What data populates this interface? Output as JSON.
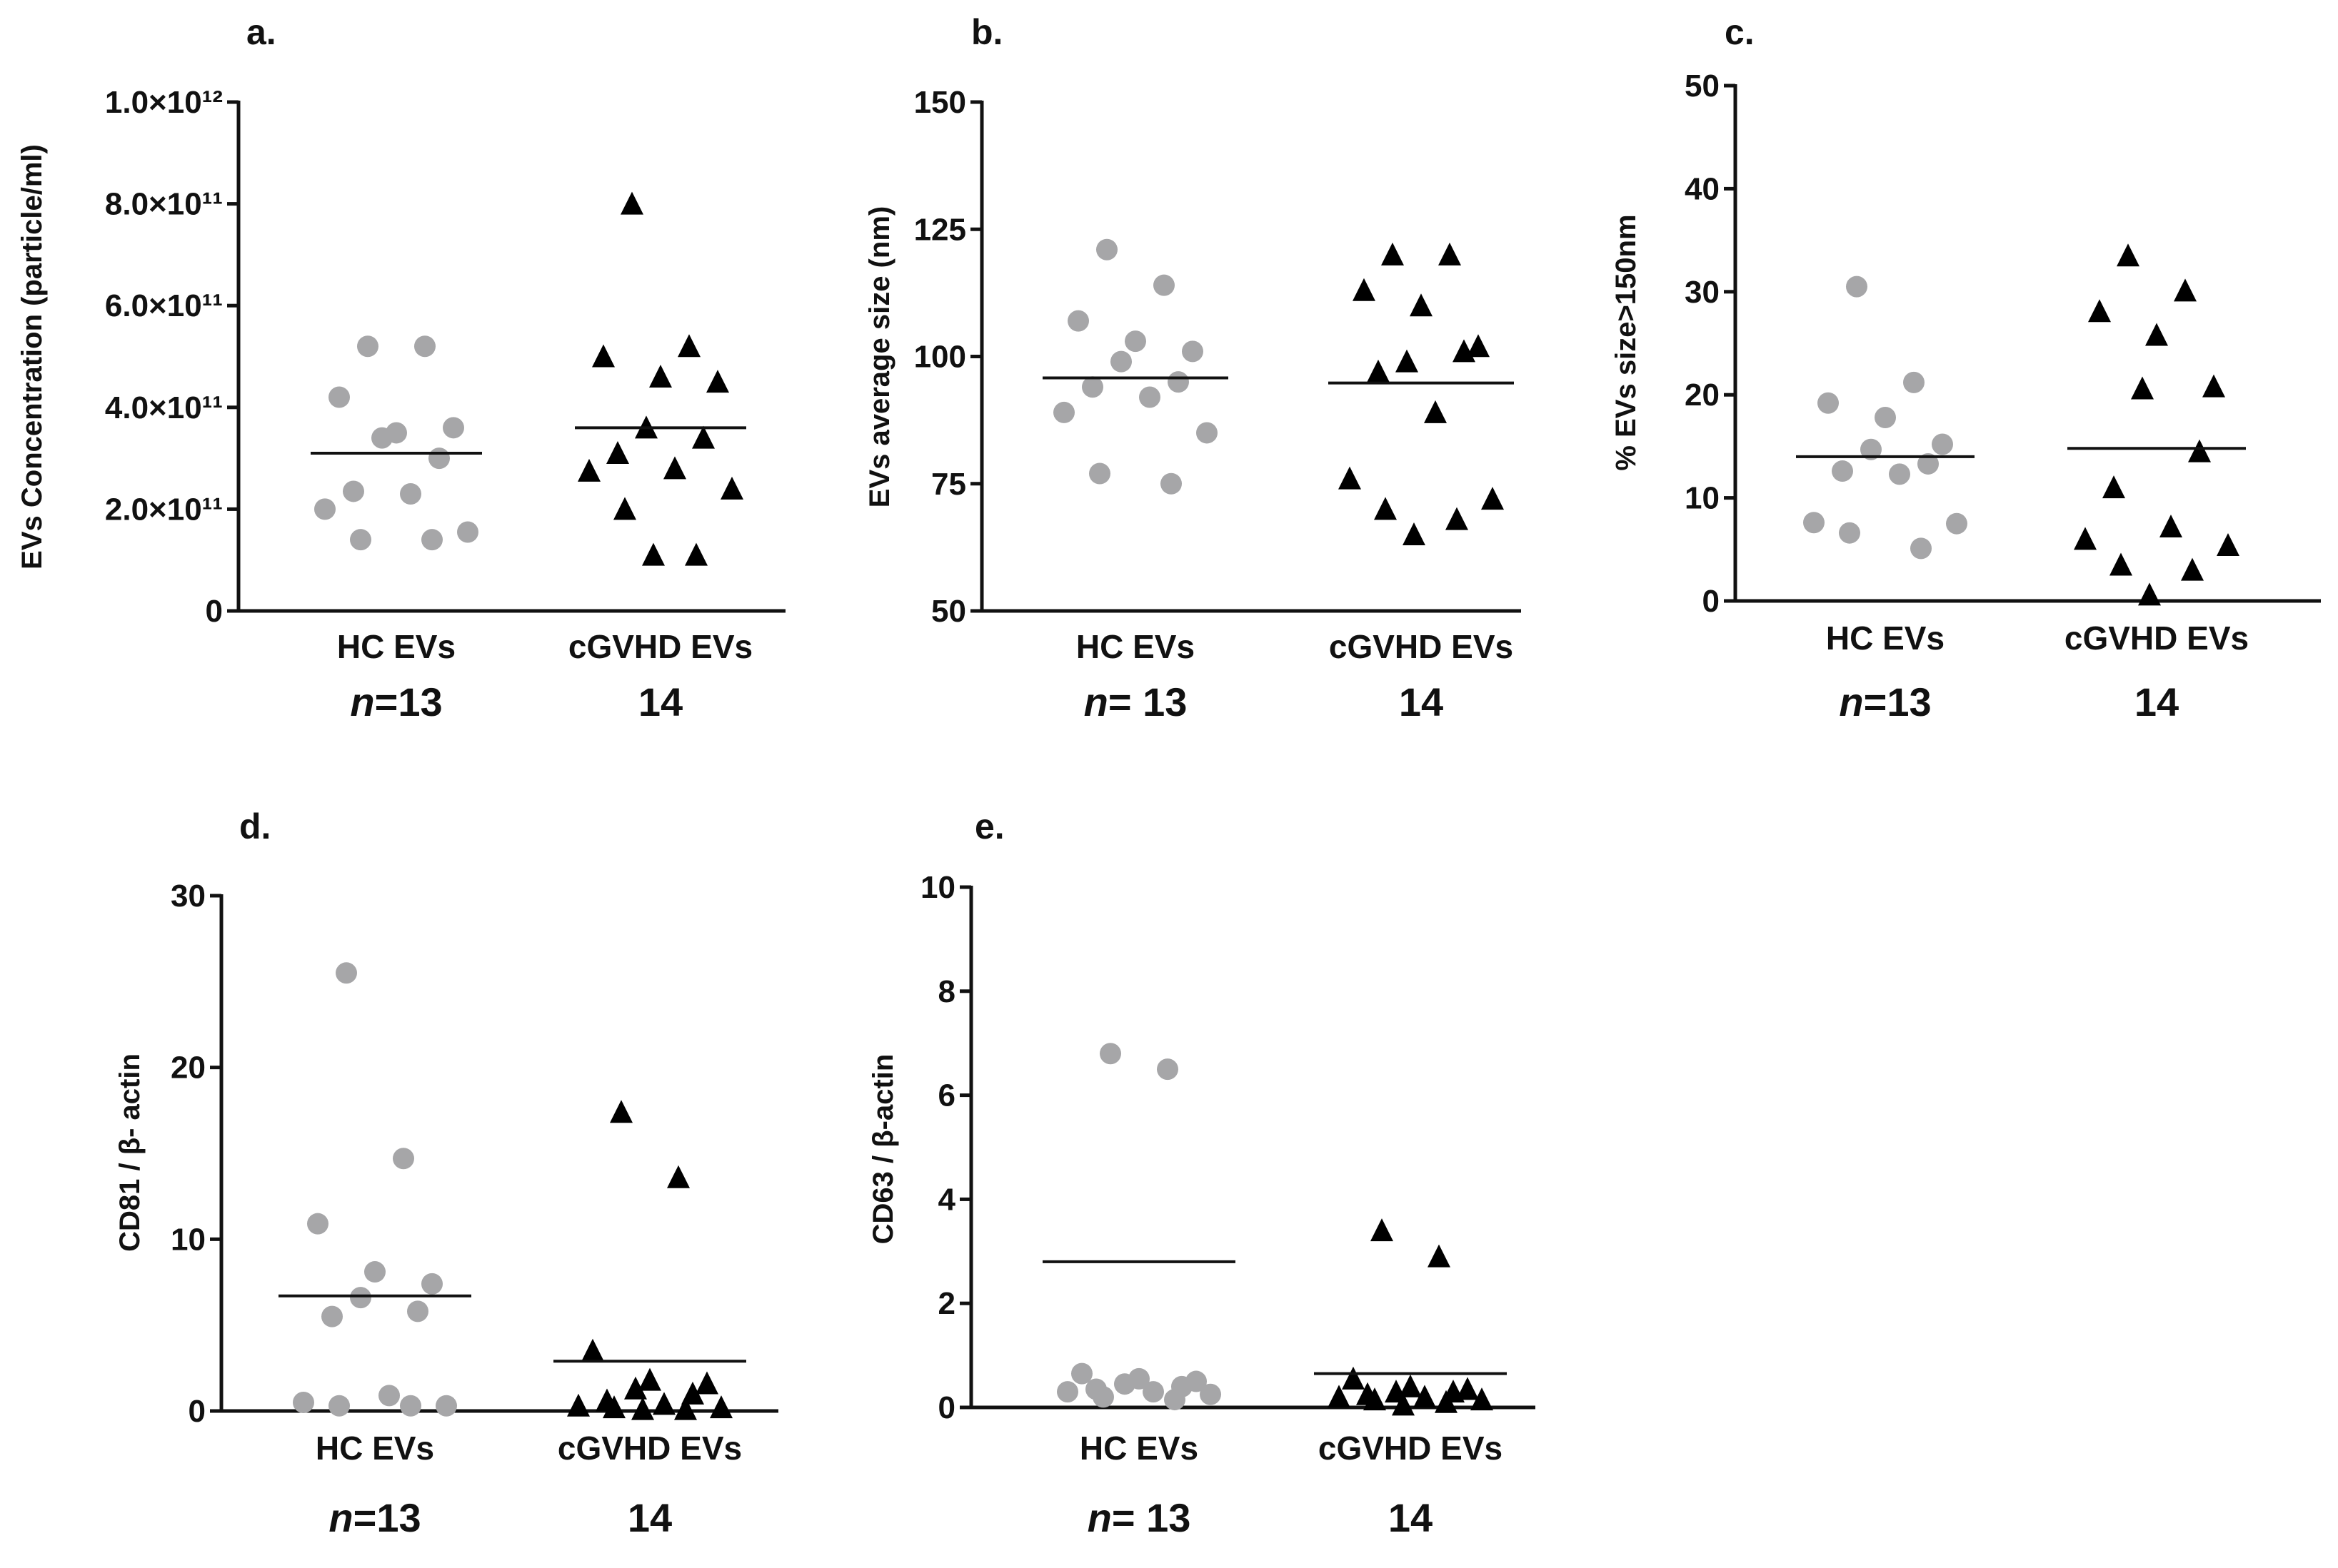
{
  "chart_data": [
    {
      "id": "a",
      "type": "scatter",
      "panel_label": "a.",
      "ylabel": "EVs Concentration (particle/ml)",
      "ylim": [
        0,
        1000000000000.0
      ],
      "yticks": [
        0,
        200000000000.0,
        400000000000.0,
        600000000000.0,
        800000000000.0,
        1000000000000.0
      ],
      "ytick_labels": [
        "0",
        "2.0×10¹¹",
        "4.0×10¹¹",
        "6.0×10¹¹",
        "8.0×10¹¹",
        "1.0×10¹²"
      ],
      "categories": [
        "HC EVs",
        "cGVHD EVs"
      ],
      "n_labels": [
        {
          "prefix": "n",
          "text": "=13"
        },
        {
          "prefix": "",
          "text": "14"
        }
      ],
      "series": [
        {
          "name": "HC EVs",
          "marker": "circle",
          "color": "#a6a6a8",
          "values": [
            520000000000.0,
            520000000000.0,
            420000000000.0,
            350000000000.0,
            360000000000.0,
            340000000000.0,
            300000000000.0,
            235000000000.0,
            230000000000.0,
            200000000000.0,
            155000000000.0,
            140000000000.0,
            140000000000.0
          ],
          "median": 310000000000.0
        },
        {
          "name": "cGVHD EVs",
          "marker": "triangle",
          "color": "#000000",
          "values": [
            800000000000.0,
            520000000000.0,
            500000000000.0,
            460000000000.0,
            450000000000.0,
            360000000000.0,
            340000000000.0,
            310000000000.0,
            280000000000.0,
            275000000000.0,
            240000000000.0,
            200000000000.0,
            110000000000.0,
            110000000000.0
          ],
          "median": 360000000000.0
        }
      ]
    },
    {
      "id": "b",
      "type": "scatter",
      "panel_label": "b.",
      "ylabel": "EVs average size (nm)",
      "ylim": [
        50,
        150
      ],
      "yticks": [
        50,
        75,
        100,
        125,
        150
      ],
      "ytick_labels": [
        "50",
        "75",
        "100",
        "125",
        "150"
      ],
      "categories": [
        "HC EVs",
        "cGVHD EVs"
      ],
      "n_labels": [
        {
          "prefix": "n",
          "text": "= 13"
        },
        {
          "prefix": "",
          "text": "14"
        }
      ],
      "series": [
        {
          "name": "HC EVs",
          "marker": "circle",
          "color": "#a6a6a8",
          "values": [
            121,
            114,
            107,
            103,
            101,
            99,
            95,
            94,
            92,
            89,
            85,
            77,
            75
          ],
          "median": 95.8
        },
        {
          "name": "cGVHD EVs",
          "marker": "triangle",
          "color": "#000000",
          "values": [
            120,
            120,
            113,
            110,
            102,
            99,
            101,
            97,
            89,
            76,
            72,
            70,
            68,
            65
          ],
          "median": 94.8
        }
      ]
    },
    {
      "id": "c",
      "type": "scatter",
      "panel_label": "c.",
      "ylabel": "% EVs size>150nm",
      "ylim": [
        0,
        50
      ],
      "yticks": [
        0,
        10,
        20,
        30,
        40,
        50
      ],
      "ytick_labels": [
        "0",
        "10",
        "20",
        "30",
        "40",
        "50"
      ],
      "categories": [
        "HC EVs",
        "cGVHD EVs"
      ],
      "n_labels": [
        {
          "prefix": "n",
          "text": "=13"
        },
        {
          "prefix": "",
          "text": "14"
        }
      ],
      "series": [
        {
          "name": "HC EVs",
          "marker": "circle",
          "color": "#a6a6a8",
          "values": [
            30.5,
            21.2,
            19.2,
            17.8,
            15.2,
            14.7,
            13.3,
            12.6,
            12.3,
            7.6,
            7.5,
            6.6,
            5.1
          ],
          "median": 14.0
        },
        {
          "name": "cGVHD EVs",
          "marker": "triangle",
          "color": "#000000",
          "values": [
            33.5,
            30.1,
            28.1,
            25.8,
            20.8,
            20.6,
            14.5,
            11.0,
            7.2,
            6.0,
            5.4,
            3.5,
            3.0,
            0.6
          ],
          "median": 14.8
        }
      ]
    },
    {
      "id": "d",
      "type": "scatter",
      "panel_label": "d.",
      "ylabel": "CD81 / β- actin",
      "ylim": [
        0,
        30
      ],
      "yticks": [
        0,
        10,
        20,
        30
      ],
      "ytick_labels": [
        "0",
        "10",
        "20",
        "30"
      ],
      "categories": [
        "HC EVs",
        "cGVHD EVs"
      ],
      "n_labels": [
        {
          "prefix": "n",
          "text": "=13"
        },
        {
          "prefix": "",
          "text": "14"
        }
      ],
      "series": [
        {
          "name": "HC EVs",
          "marker": "circle",
          "color": "#a6a6a8",
          "values": [
            25.5,
            14.7,
            10.9,
            8.1,
            7.4,
            6.6,
            5.8,
            5.5,
            0.9,
            0.5,
            0.3,
            0.3,
            0.3
          ],
          "median": 6.7
        },
        {
          "name": "cGVHD EVs",
          "marker": "triangle",
          "color": "#000000",
          "values": [
            17.4,
            13.6,
            3.5,
            1.8,
            1.6,
            1.3,
            1.0,
            0.6,
            0.4,
            0.3,
            0.2,
            0.2,
            0.1,
            0.1
          ],
          "median": 2.9
        }
      ]
    },
    {
      "id": "e",
      "type": "scatter",
      "panel_label": "e.",
      "ylabel": "CD63 / β-actin",
      "ylim": [
        0,
        10
      ],
      "yticks": [
        0,
        2,
        4,
        6,
        8,
        10
      ],
      "ytick_labels": [
        "0",
        "2",
        "4",
        "6",
        "8",
        "10"
      ],
      "categories": [
        "HC EVs",
        "cGVHD EVs"
      ],
      "n_labels": [
        {
          "prefix": "n",
          "text": "= 13"
        },
        {
          "prefix": "",
          "text": "14"
        }
      ],
      "series": [
        {
          "name": "HC EVs",
          "marker": "circle",
          "color": "#a6a6a8",
          "values": [
            6.8,
            6.5,
            0.65,
            0.55,
            0.5,
            0.45,
            0.4,
            0.35,
            0.3,
            0.3,
            0.25,
            0.2,
            0.15
          ],
          "median": 2.8
        },
        {
          "name": "cGVHD EVs",
          "marker": "triangle",
          "color": "#000000",
          "values": [
            3.4,
            2.9,
            0.55,
            0.4,
            0.35,
            0.3,
            0.3,
            0.25,
            0.2,
            0.2,
            0.15,
            0.15,
            0.1,
            0.05
          ],
          "median": 0.65
        }
      ]
    }
  ]
}
